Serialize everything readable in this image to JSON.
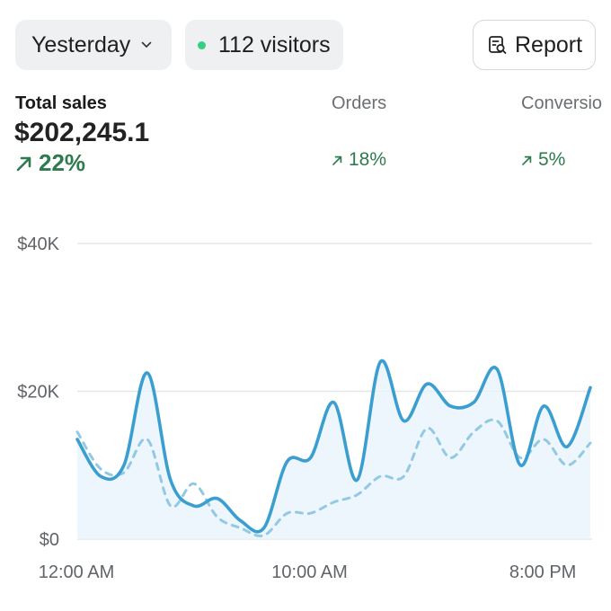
{
  "header": {
    "period_label": "Yesterday",
    "visitors_label": "112 visitors",
    "report_label": "Report",
    "colors": {
      "live_dot": "#35d07f"
    }
  },
  "metrics": [
    {
      "label": "Total sales",
      "value": "$202,245.1",
      "delta": "22%"
    },
    {
      "label": "Orders",
      "delta": "18%"
    },
    {
      "label": "Conversio",
      "delta": "5%"
    }
  ],
  "chart_data": {
    "type": "line",
    "x_tick_labels": [
      "12:00 AM",
      "10:00 AM",
      "8:00 PM"
    ],
    "y_tick_labels": [
      "$0",
      "$20K",
      "$40K"
    ],
    "ylim": [
      0,
      40000
    ],
    "grid": true,
    "colors": {
      "current": "#3a9fd0",
      "previous": "#93c9e3",
      "area": "#e8f4fb"
    },
    "series": [
      {
        "style": "solid",
        "values": [
          13500,
          8500,
          10000,
          22500,
          8000,
          4500,
          5500,
          2500,
          1500,
          10500,
          11000,
          18500,
          8000,
          24000,
          16000,
          21000,
          18000,
          18500,
          23000,
          10000,
          18000,
          12500,
          20500
        ]
      },
      {
        "style": "dashed",
        "values": [
          14500,
          9500,
          9000,
          13500,
          4500,
          7500,
          3000,
          1500,
          500,
          3500,
          3500,
          5000,
          6000,
          8500,
          8500,
          15000,
          11000,
          14500,
          16000,
          11000,
          13500,
          10000,
          13000
        ]
      }
    ]
  }
}
